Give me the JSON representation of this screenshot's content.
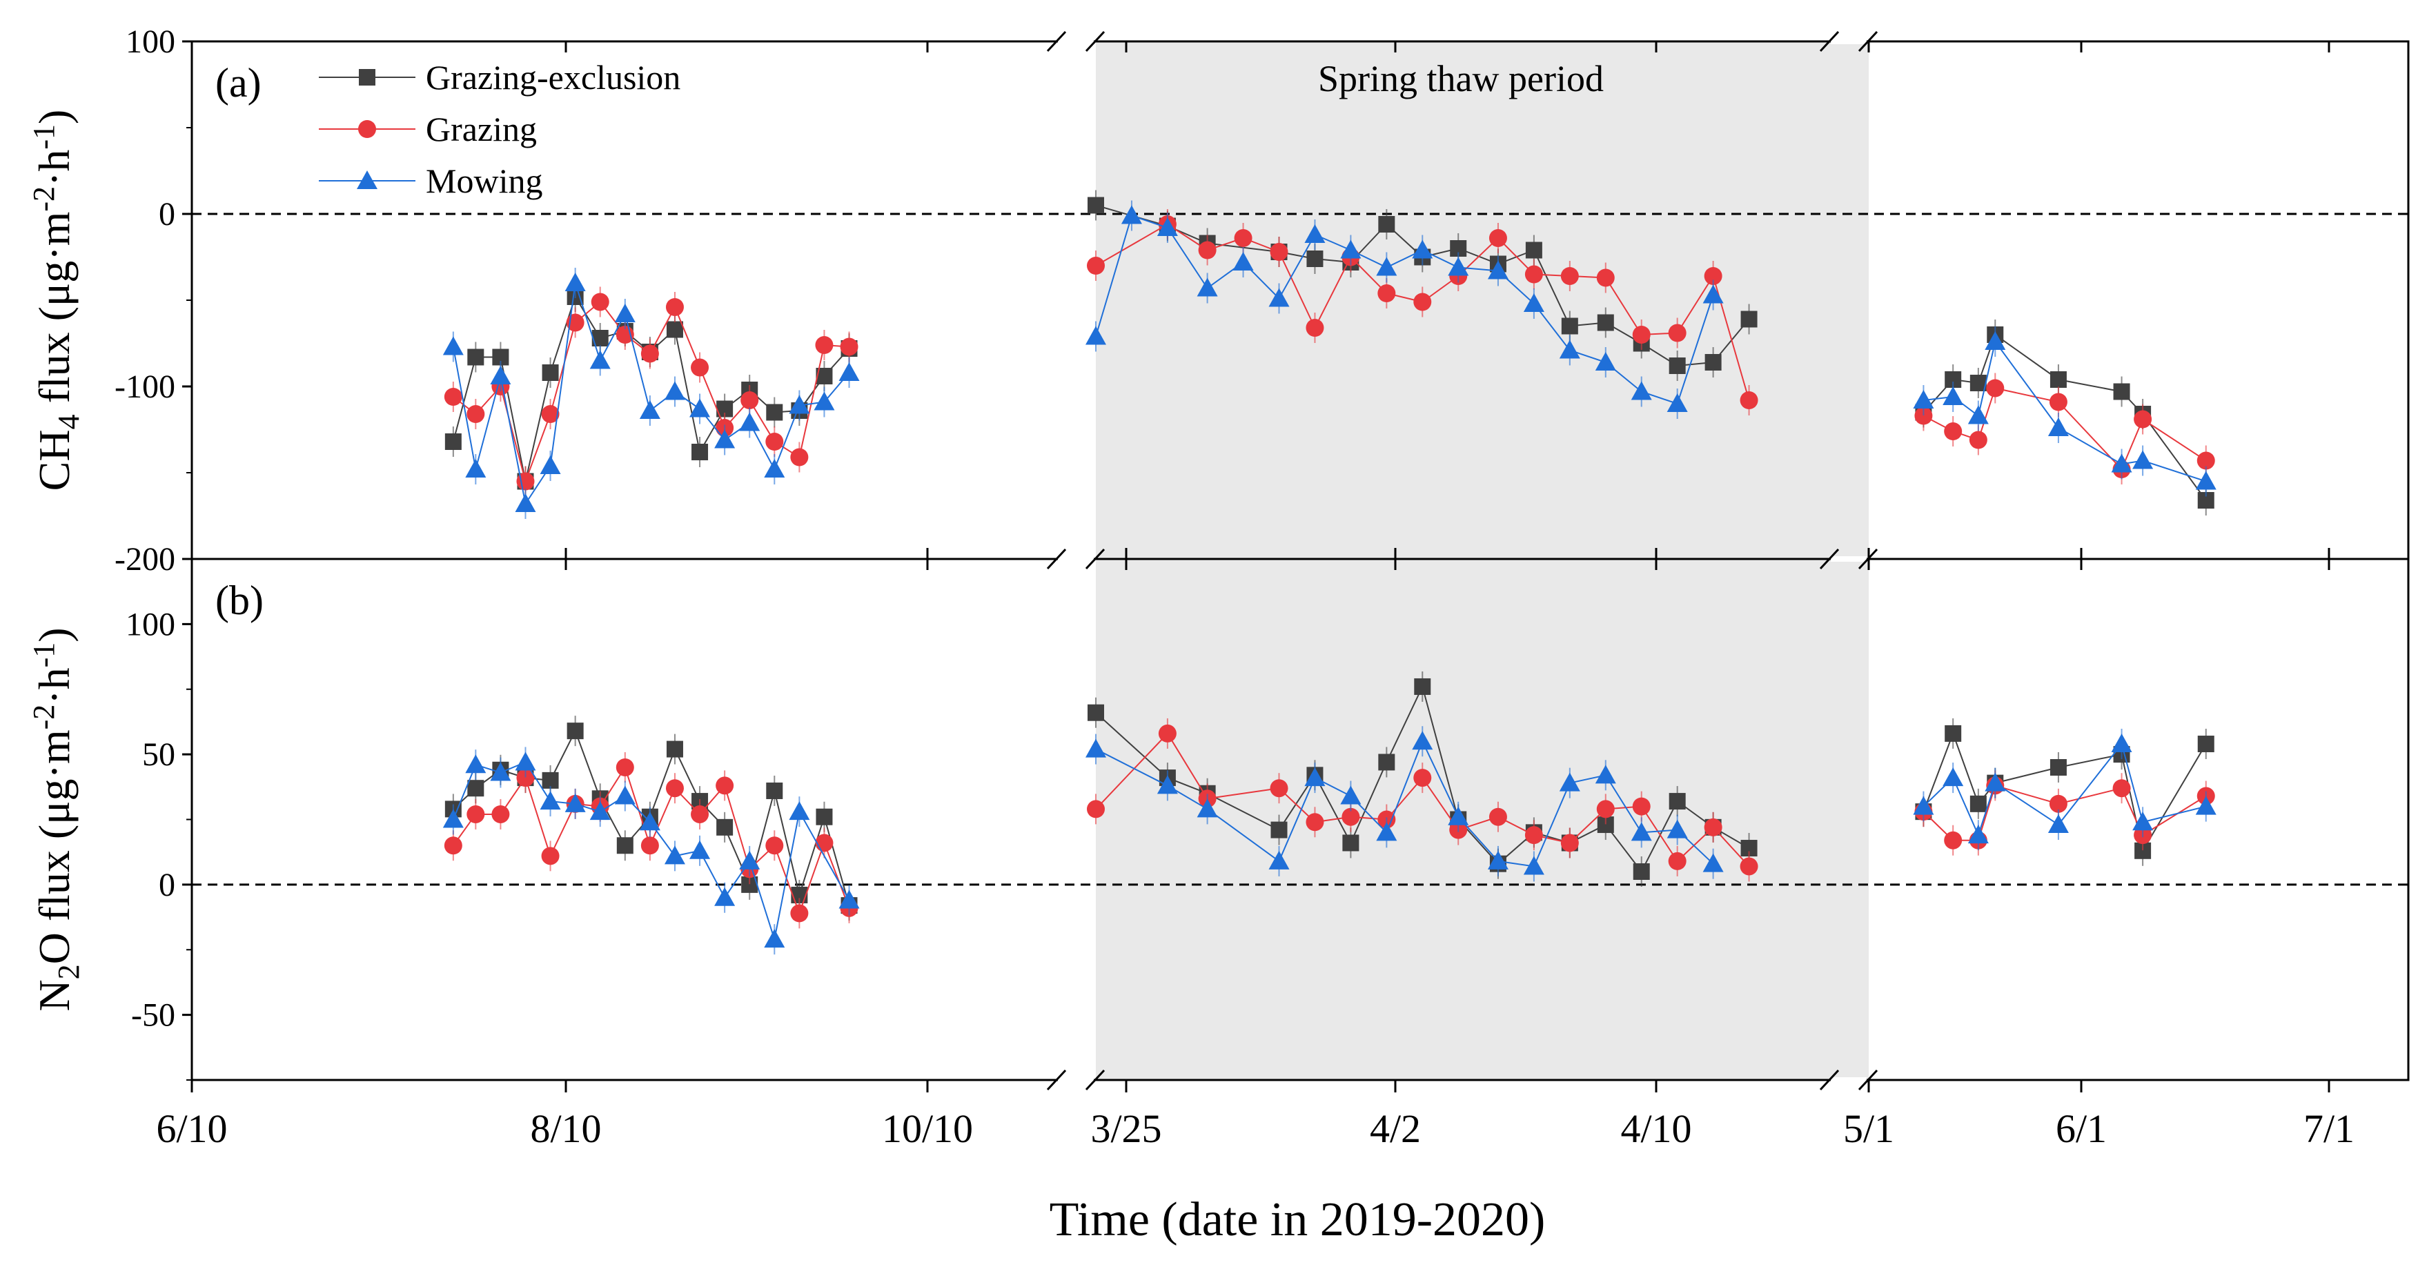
{
  "chart_data": {
    "type": "line",
    "xlabel": "Time (date in 2019-2020)",
    "annotation": "Spring thaw period",
    "x_ticks": [
      "6/10",
      "8/10",
      "10/10",
      "3/25",
      "4/2",
      "4/10",
      "5/1",
      "6/1",
      "7/1"
    ],
    "legend": [
      "Grazing-exclusion",
      "Grazing",
      "Mowing"
    ],
    "series_colors": {
      "Grazing-exclusion": "#404040",
      "Grazing": "#e8383d",
      "Mowing": "#1f6fd8"
    },
    "panels": [
      {
        "label": "(a)",
        "ylabel_main": "CH",
        "ylabel_sub": "4",
        "ylabel_rest": " flux (μg·m",
        "ylabel_sup1": "-2",
        "ylabel_mid": "·h",
        "ylabel_sup2": "-1",
        "ylabel_end": ")",
        "ylim": [
          -200,
          100
        ],
        "yticks": [
          "100",
          "0",
          "-100",
          "-200"
        ],
        "ytick_values": [
          100,
          0,
          -100,
          -200
        ],
        "segments": [
          {
            "x": [
              16.5,
              17.4,
              18.4,
              19.4,
              20.4,
              21.4,
              22.4,
              23.4,
              24.4,
              25.4,
              26.4,
              27.4,
              28.4,
              29.4,
              30.4,
              31.4,
              32.4,
              33.4
            ],
            "series": {
              "Grazing-exclusion": [
                -132,
                -83,
                -83,
                -155,
                -92,
                -48,
                -72,
                -68,
                -80,
                -67,
                -138,
                -113,
                -102,
                -115,
                -114,
                -94,
                -78,
                null
              ],
              "Grazing": [
                -106,
                -116,
                -100,
                -155,
                -116,
                -63,
                -51,
                -70,
                -81,
                -54,
                -89,
                -124,
                -108,
                -132,
                -141,
                -76,
                -77,
                null
              ],
              "Mowing": [
                -77,
                -148,
                -94,
                -168,
                -146,
                -40,
                -85,
                -58,
                -114,
                -103,
                -113,
                -131,
                -121,
                -148,
                -111,
                -109,
                -92,
                null
              ]
            }
          },
          {
            "x": [
              0.0,
              0.9,
              1.8,
              2.8,
              3.7,
              4.6,
              5.5,
              6.4,
              7.3,
              8.2,
              9.1,
              10.1,
              11.0,
              11.9,
              12.8,
              13.7,
              14.6,
              15.5,
              16.4,
              17.3
            ],
            "series": {
              "Grazing-exclusion": [
                5,
                null,
                -7,
                -17,
                null,
                -22,
                -26,
                -28,
                -6,
                -25,
                -20,
                -29,
                -21,
                -65,
                -63,
                -75,
                -88,
                -86,
                -61,
                null
              ],
              "Grazing": [
                -30,
                null,
                -6,
                -21,
                -14,
                -22,
                -66,
                -25,
                -46,
                -51,
                -36,
                -14,
                -35,
                -36,
                -37,
                -70,
                -69,
                -36,
                -108,
                null
              ],
              "Mowing": [
                -71,
                -1,
                -8,
                -43,
                -28,
                -49,
                -12,
                -21,
                -31,
                -21,
                -31,
                -33,
                -52,
                -79,
                -86,
                -103,
                -110,
                -47,
                null,
                null
              ]
            }
          },
          {
            "x": [
              0.0,
              0.65,
              1.3,
              2.0,
              2.6,
              3.0,
              3.5,
              4.0,
              4.5,
              5.0,
              5.5,
              6.0,
              6.5,
              7.0,
              7.5,
              8.0,
              8.5,
              9.0,
              9.5,
              10.0,
              10.5,
              11.0,
              11.5,
              12.0,
              12.5
            ],
            "series": {
              "Grazing-exclusion": [
                null,
                null,
                -115,
                -96,
                -98,
                -70,
                null,
                null,
                -96,
                null,
                null,
                -103,
                -116,
                null,
                null,
                -166,
                null,
                null,
                null,
                null,
                null,
                null,
                null,
                null,
                null
              ],
              "Grazing": [
                null,
                null,
                -117,
                -126,
                -131,
                -101,
                null,
                null,
                -109,
                null,
                null,
                -148,
                -119,
                null,
                null,
                -143,
                null,
                null,
                null,
                null,
                null,
                null,
                null,
                null,
                null
              ],
              "Mowing": [
                null,
                null,
                -108,
                -106,
                -117,
                -74,
                null,
                null,
                -124,
                null,
                null,
                -145,
                -143,
                null,
                null,
                -155,
                null,
                null,
                null,
                null,
                null,
                null,
                null,
                null,
                null
              ]
            }
          }
        ]
      },
      {
        "label": "(b)",
        "ylabel_main": "N",
        "ylabel_sub": "2",
        "ylabel_rest": "O flux (μg·m",
        "ylabel_sup1": "-2",
        "ylabel_mid": "·h",
        "ylabel_sup2": "-1",
        "ylabel_end": ")",
        "ylim": [
          -75,
          125
        ],
        "yticks": [
          "100",
          "50",
          "0",
          "-50"
        ],
        "ytick_values": [
          100,
          50,
          0,
          -50
        ],
        "segments": [
          {
            "x": [
              16.5,
              17.4,
              18.4,
              19.4,
              20.4,
              21.4,
              22.4,
              23.4,
              24.4,
              25.4,
              26.4,
              27.4,
              28.4,
              29.4,
              30.4,
              31.4,
              32.4,
              33.4
            ],
            "series": {
              "Grazing-exclusion": [
                29,
                37,
                44,
                41,
                40,
                59,
                33,
                15,
                26,
                52,
                32,
                22,
                0,
                36,
                -4,
                26,
                -8,
                null
              ],
              "Grazing": [
                15,
                27,
                27,
                41,
                11,
                31,
                30,
                45,
                15,
                37,
                27,
                38,
                6,
                15,
                -11,
                16,
                -9,
                null
              ],
              "Mowing": [
                25,
                46,
                43,
                47,
                32,
                31,
                28,
                34,
                24,
                11,
                13,
                -5,
                9,
                -21,
                28,
                null,
                -6,
                null
              ]
            }
          },
          {
            "x": [
              0.0,
              0.9,
              1.8,
              2.8,
              3.7,
              4.6,
              5.5,
              6.4,
              7.3,
              8.2,
              9.1,
              10.1,
              11.0,
              11.9,
              12.8,
              13.7,
              14.6,
              15.5,
              16.4,
              17.3
            ],
            "series": {
              "Grazing-exclusion": [
                66,
                null,
                41,
                35,
                null,
                21,
                42,
                16,
                47,
                76,
                25,
                8,
                20,
                16,
                23,
                5,
                32,
                22,
                14,
                null
              ],
              "Grazing": [
                29,
                null,
                58,
                33,
                null,
                37,
                24,
                26,
                25,
                41,
                21,
                26,
                19,
                16,
                29,
                30,
                9,
                22,
                7,
                null
              ],
              "Mowing": [
                52,
                null,
                38,
                29,
                null,
                9,
                41,
                34,
                20,
                55,
                26,
                9,
                7,
                39,
                42,
                20,
                21,
                8,
                null,
                null
              ]
            }
          },
          {
            "x": [
              0.0,
              0.65,
              1.3,
              2.0,
              2.6,
              3.0,
              3.5,
              4.0,
              4.5,
              5.0,
              5.5,
              6.0,
              6.5,
              7.0,
              7.5,
              8.0,
              8.5,
              9.0,
              9.5,
              10.0,
              10.5,
              11.0,
              11.5,
              12.0,
              12.5
            ],
            "series": {
              "Grazing-exclusion": [
                null,
                null,
                28,
                58,
                31,
                39,
                null,
                null,
                45,
                null,
                null,
                50,
                13,
                null,
                null,
                54,
                null,
                null,
                null,
                null,
                null,
                null,
                null,
                null,
                null
              ],
              "Grazing": [
                null,
                null,
                28,
                17,
                17,
                38,
                null,
                null,
                31,
                null,
                null,
                37,
                19,
                null,
                null,
                34,
                null,
                null,
                null,
                null,
                null,
                null,
                null,
                null,
                null
              ],
              "Mowing": [
                null,
                null,
                30,
                41,
                19,
                39,
                null,
                null,
                23,
                null,
                null,
                54,
                24,
                null,
                null,
                30,
                null,
                null,
                null,
                null,
                null,
                null,
                null,
                null,
                null
              ]
            }
          }
        ]
      }
    ]
  }
}
